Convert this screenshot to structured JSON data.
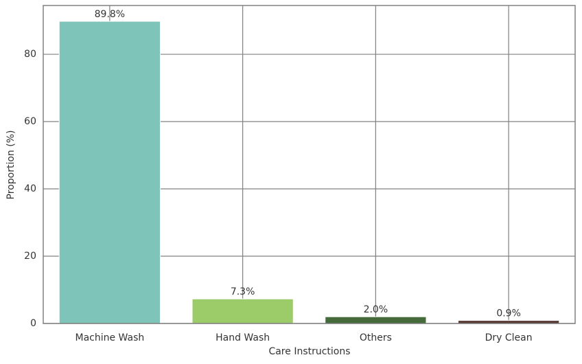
{
  "chart_data": {
    "type": "bar",
    "xlabel": "Care Instructions",
    "ylabel": "Proportion (%)",
    "categories": [
      "Machine Wash",
      "Hand Wash",
      "Others",
      "Dry Clean"
    ],
    "values": [
      89.8,
      7.3,
      2.0,
      0.9
    ],
    "value_labels": [
      "89.8%",
      "7.3%",
      "2.0%",
      "0.9%"
    ],
    "colors": [
      "#7fc4b8",
      "#9ccb6a",
      "#456b3a",
      "#5a3a35"
    ],
    "ylim": [
      0,
      94.5
    ],
    "yticks": [
      0,
      20,
      40,
      60,
      80
    ],
    "grid": true
  }
}
